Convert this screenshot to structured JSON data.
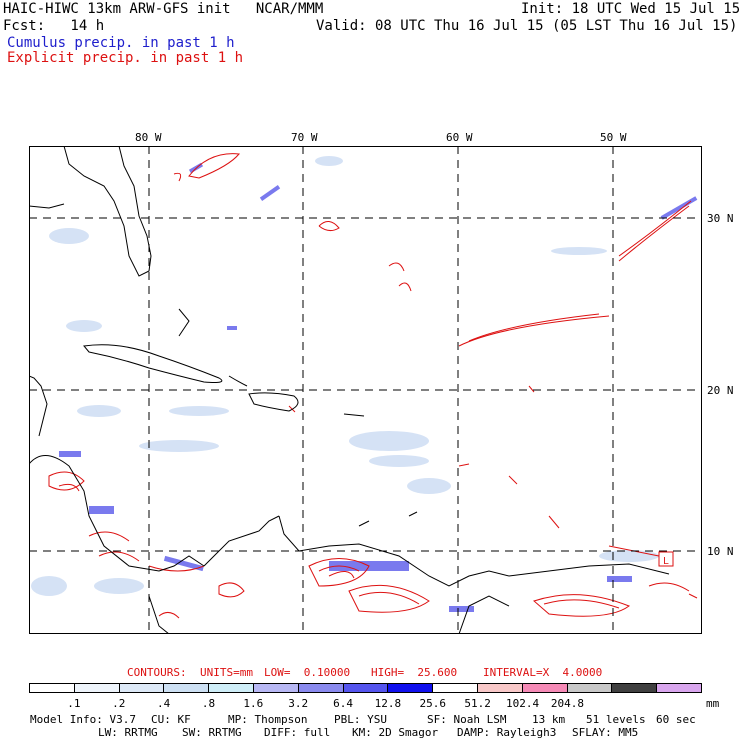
{
  "header": {
    "line1_left": "HAIC-HIWC 13km ARW-GFS init   NCAR/MMM",
    "line1_right": "Init: 18 UTC Wed 15 Jul 15",
    "line2_left": "Fcst:   14 h",
    "line2_right": "Valid: 08 UTC Thu 16 Jul 15 (05 LST Thu 16 Jul 15)",
    "legend_cumulus": "Cumulus precip. in past 1 h",
    "legend_explicit": "Explicit precip. in past 1 h"
  },
  "map": {
    "lon_labels": [
      "80 W",
      "70 W",
      "60 W",
      "50 W"
    ],
    "lat_labels": [
      "30 N",
      "20 N",
      "10 N"
    ],
    "low_marker": "L"
  },
  "contours_line": {
    "label": "CONTOURS:",
    "units": "UNITS=mm",
    "low": "LOW=  0.10000",
    "high": "HIGH=  25.600",
    "interval": "INTERVAL=X  4.0000"
  },
  "colorbar": {
    "colors": [
      "#ffffff",
      "#eef4fb",
      "#dde9f7",
      "#cde0f3",
      "#cfeef8",
      "#b8b8f4",
      "#8a8aee",
      "#5555ee",
      "#1010ee",
      "#ffffff",
      "#f8c8c8",
      "#f58ab6",
      "#c8c8c8",
      "#404040",
      "#d9a6ee"
    ],
    "labels": [
      ".1",
      ".2",
      ".4",
      ".8",
      "1.6",
      "3.2",
      "6.4",
      "12.8",
      "25.6",
      "51.2",
      "102.4",
      "204.8"
    ],
    "unit": "mm"
  },
  "footer": {
    "row1": [
      "Model Info: V3.7",
      "CU: KF",
      "MP: Thompson",
      "PBL: YSU",
      "SF: Noah LSM",
      "13 km",
      "51 levels",
      "60 sec"
    ],
    "row2": [
      "LW: RRTMG",
      "SW: RRTMG",
      "DIFF: full",
      "KM: 2D Smagor",
      "DAMP: Rayleigh3",
      "SFLAY: MM5"
    ]
  }
}
